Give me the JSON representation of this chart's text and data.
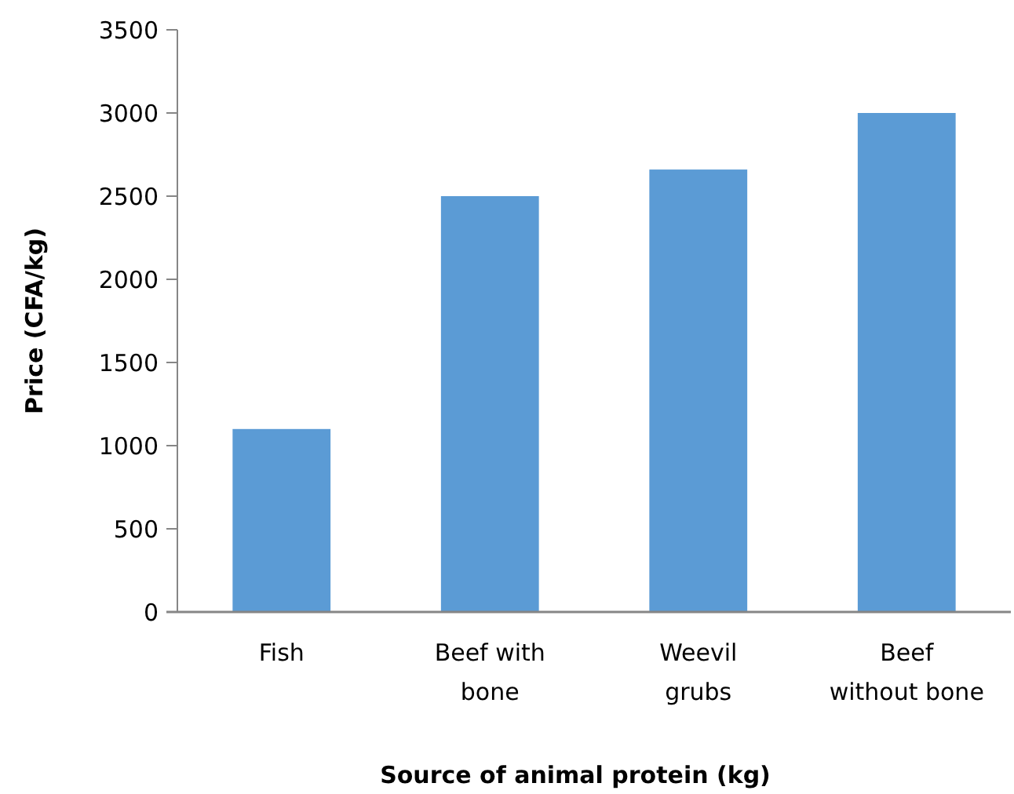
{
  "chart_data": {
    "type": "bar",
    "xlabel": "Source of animal protein (kg)",
    "ylabel": "Price (CFA/kg)",
    "categories": [
      "Fish",
      "Beef with bone",
      "Weevil grubs",
      "Beef without bone"
    ],
    "values": [
      1100,
      2500,
      2660,
      3000
    ],
    "color": "#5b9bd5",
    "ylim": [
      0,
      3500
    ],
    "yticks": [
      0,
      500,
      1000,
      1500,
      2000,
      2500,
      3000,
      3500
    ],
    "grid": false
  }
}
